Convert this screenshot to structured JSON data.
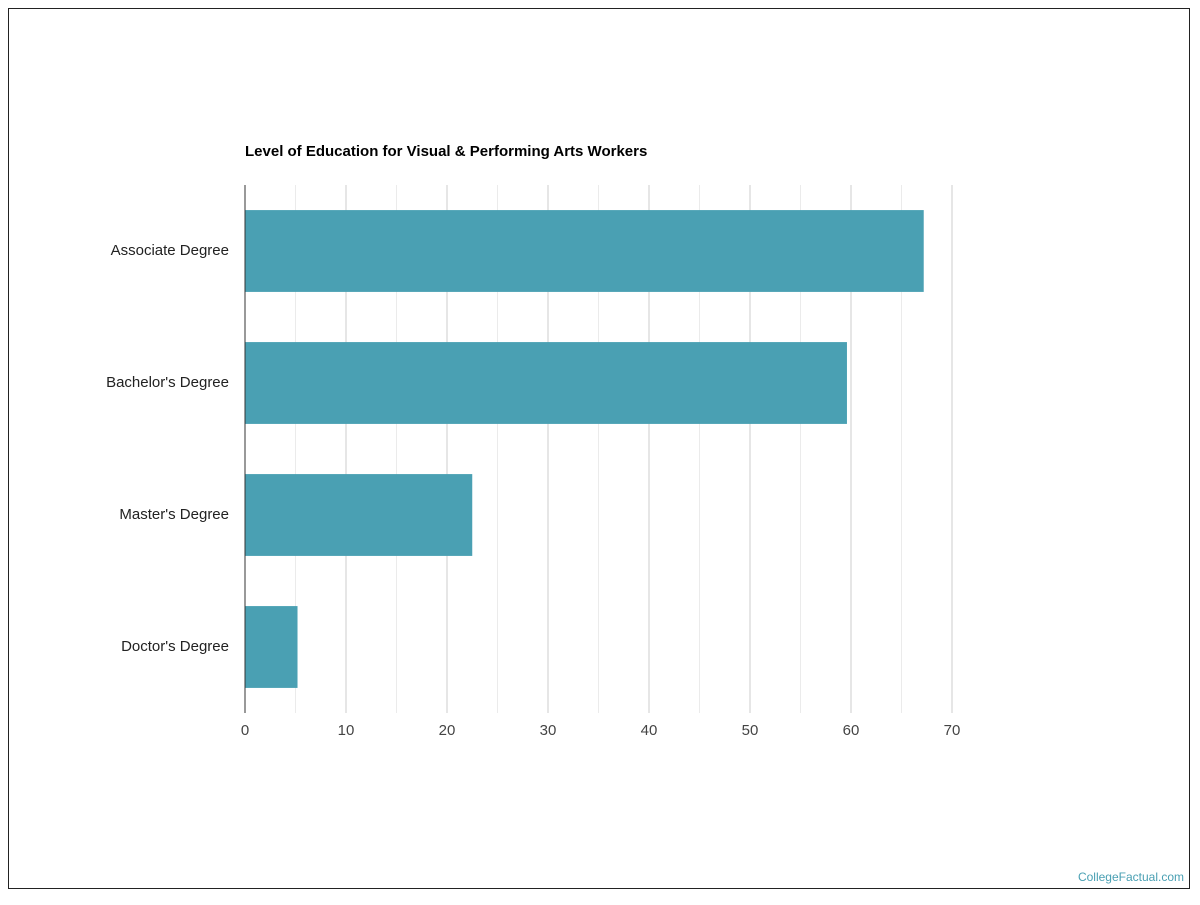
{
  "chart_data": {
    "type": "barh",
    "title": "Level of Education for Visual & Performing Arts Workers",
    "categories": [
      "Associate Degree",
      "Bachelor's Degree",
      "Master's Degree",
      "Doctor's Degree"
    ],
    "values": [
      67.2,
      59.6,
      22.5,
      5.2
    ],
    "color": "#4aa0b3",
    "xlim": [
      0,
      70
    ],
    "xticks": [
      0,
      10,
      20,
      30,
      40,
      50,
      60,
      70
    ],
    "xminorticks": [
      5,
      15,
      25,
      35,
      45,
      55,
      65
    ],
    "grid": true
  },
  "watermark": "CollegeFactual.com"
}
